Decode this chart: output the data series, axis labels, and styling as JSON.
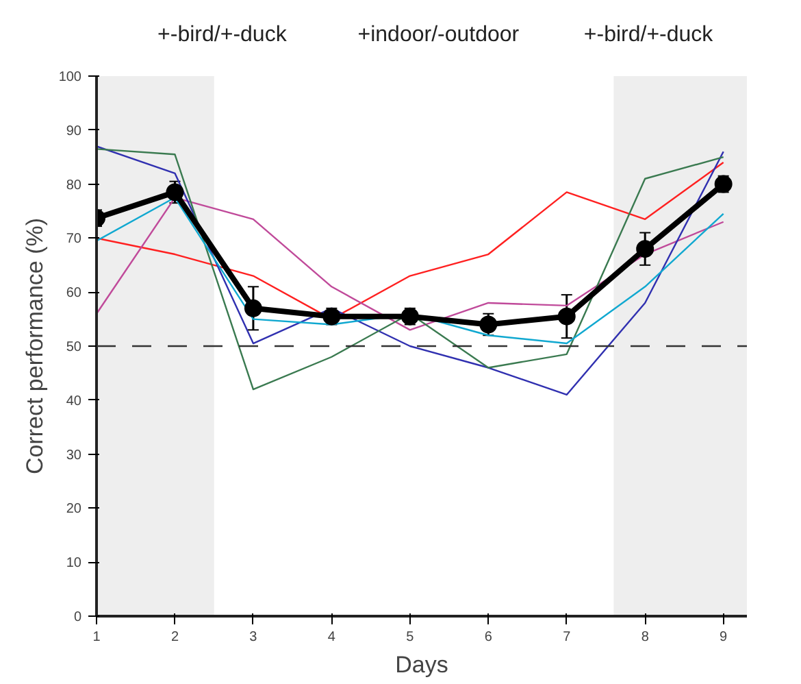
{
  "chart_data": {
    "type": "line",
    "xlabel": "Days",
    "ylabel": "Correct performance (%)",
    "x": [
      1,
      2,
      3,
      4,
      5,
      6,
      7,
      8,
      9
    ],
    "xlim": [
      1,
      9.3
    ],
    "xticks": [
      1,
      2,
      3,
      4,
      5,
      6,
      7,
      8,
      9
    ],
    "ylim": [
      0,
      100
    ],
    "yticks": [
      0,
      10,
      20,
      30,
      40,
      50,
      60,
      70,
      80,
      90,
      100
    ],
    "grid": false,
    "marker": "none",
    "line_style": "solid",
    "series": [
      {
        "color": "#ff2020",
        "values": [
          70,
          67,
          63,
          55,
          63,
          67,
          78.5,
          73.5,
          84
        ]
      },
      {
        "color": "#c04a9a",
        "values": [
          56,
          77.5,
          73.5,
          61,
          53,
          58,
          57.5,
          67,
          73
        ]
      },
      {
        "color": "#3030b0",
        "values": [
          87,
          82,
          50.5,
          57,
          50,
          46,
          41,
          58,
          86
        ]
      },
      {
        "color": "#3a7a50",
        "values": [
          86.5,
          85.5,
          42,
          48,
          56,
          46,
          48.5,
          81,
          85
        ]
      },
      {
        "color": "#10a8d0",
        "values": [
          69.5,
          77.5,
          55,
          54,
          56,
          52,
          50.5,
          61,
          74.5
        ]
      },
      {
        "color": "#000000",
        "marker": "circle",
        "values": [
          73.7,
          78.5,
          57,
          55.5,
          55.5,
          54,
          55.5,
          68,
          80
        ],
        "errors": [
          1.5,
          2,
          4,
          1.5,
          1.5,
          2,
          4,
          3,
          1.5
        ]
      }
    ],
    "ref_lines": [
      {
        "axis": "y",
        "value": 50,
        "color": "#333333",
        "line_style": "dashed"
      }
    ],
    "bands": [
      {
        "axis": "x",
        "from": 1,
        "to": 2.5,
        "color": "#eeeeee",
        "label": "+-bird/+-duck"
      },
      {
        "axis": "x",
        "from": 7.6,
        "to": 9.3,
        "color": "#eeeeee",
        "label": "+-bird/+-duck"
      }
    ],
    "annotations": [
      "+indoor/-outdoor"
    ]
  }
}
